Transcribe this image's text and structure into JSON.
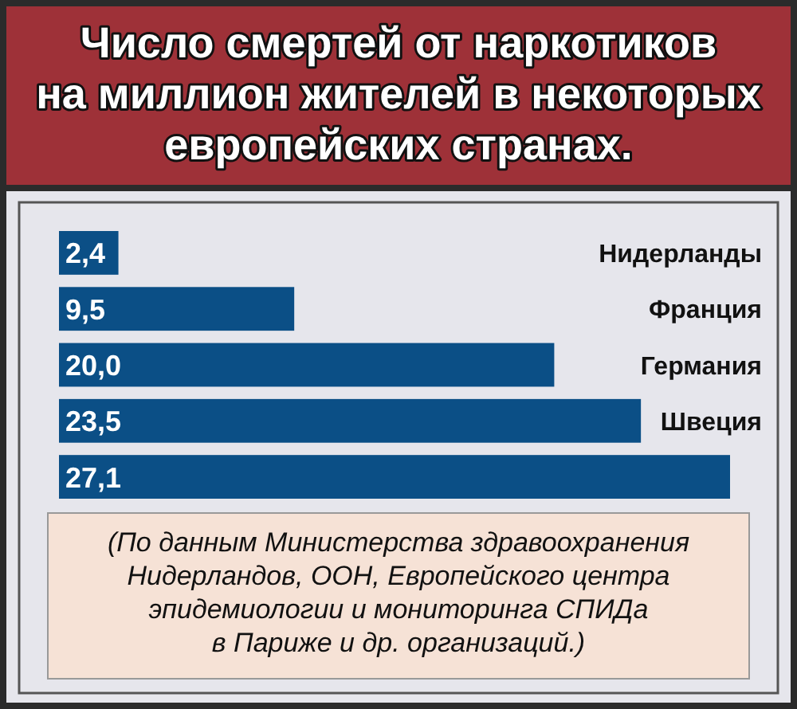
{
  "chart_data": {
    "type": "bar",
    "orientation": "horizontal",
    "title": "Число смертей от наркотиков\nна миллион жителей в некоторых\nевропейских странах.",
    "categories": [
      "Нидерланды",
      "Франция",
      "Германия",
      "Швеция",
      null
    ],
    "values": [
      2.4,
      9.5,
      20.0,
      23.5,
      27.1
    ],
    "value_labels": [
      "2,4",
      "9,5",
      "20,0",
      "23,5",
      "27,1"
    ],
    "color": "#0b4f86",
    "annotations": [
      "(По данным Министерства здравоохранения\nНидерландов, ООН, Европейского центра\nэпидемиологии и мониторинга СПИДа\nв Париже и др. организаций.)"
    ]
  }
}
